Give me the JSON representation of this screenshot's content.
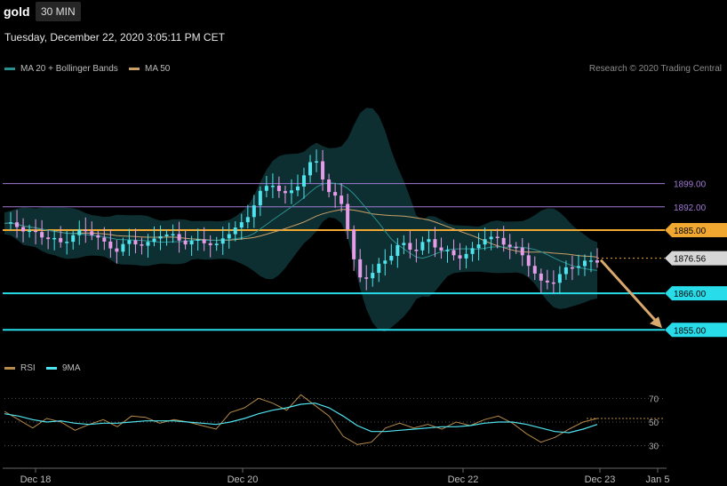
{
  "header": {
    "symbol": "gold",
    "timeframe": "30 MIN",
    "timestamp": "Tuesday, December 22, 2020 3:05:11 PM CET"
  },
  "legend": {
    "ma20": "MA 20 + Bollinger Bands",
    "ma50": "MA 50",
    "rsi": "RSI",
    "rsi_ma": "9MA"
  },
  "credit": "Research © 2020 Trading Central",
  "colors": {
    "background": "#000000",
    "up": "#4fe3ee",
    "down": "#e79ce9",
    "ma20": "#2a8f8f",
    "ma50": "#c9a06a",
    "band": "#0f3436",
    "resistance": "#f0a830",
    "support": "#28dcea",
    "pivot": "#a07ad4",
    "arrow": "#d8a86c",
    "rsi": "#b58a4a"
  },
  "chart_data": [
    {
      "type": "line",
      "subtype": "candlestick",
      "ylim": [
        1850,
        1920
      ],
      "xlabels": [
        "Dec 18",
        "Dec 20",
        "Dec 22",
        "Dec 23",
        "Jan 5"
      ],
      "series": [
        {
          "name": "MA 20 + Bollinger Bands",
          "x": [
            "Dec 18",
            "Dec 20",
            "Dec 21",
            "Dec 22",
            "Dec 23"
          ],
          "values": [
            1887,
            1882,
            1888,
            1883,
            1877
          ]
        },
        {
          "name": "MA 50",
          "x": [
            "Dec 18",
            "Dec 20",
            "Dec 21",
            "Dec 22",
            "Dec 23"
          ],
          "values": [
            1880,
            1882,
            1886,
            1884,
            1879
          ]
        }
      ],
      "close_path": [
        1887,
        1886,
        1884,
        1883,
        1881,
        1884,
        1885,
        1881,
        1879,
        1882,
        1880,
        1884,
        1883,
        1881,
        1882,
        1880,
        1885,
        1887,
        1896,
        1899,
        1895,
        1900,
        1907,
        1896,
        1893,
        1870,
        1872,
        1876,
        1881,
        1879,
        1882,
        1879,
        1877,
        1878,
        1883,
        1882,
        1880,
        1876,
        1869,
        1870,
        1874,
        1875,
        1876
      ],
      "levels": [
        {
          "label": "1899.00",
          "value": 1899,
          "kind": "pivot"
        },
        {
          "label": "1892.00",
          "value": 1892,
          "kind": "pivot"
        },
        {
          "label": "1885.00",
          "value": 1885,
          "kind": "resistance"
        },
        {
          "label": "1876.56",
          "value": 1876.56,
          "kind": "last"
        },
        {
          "label": "1866.00",
          "value": 1866,
          "kind": "support"
        },
        {
          "label": "1855.00",
          "value": 1855,
          "kind": "support"
        }
      ],
      "forecast": {
        "from": 1876.56,
        "to": 1855
      }
    },
    {
      "type": "line",
      "ylim": [
        20,
        80
      ],
      "yticks": [
        70,
        50,
        30
      ],
      "series": [
        {
          "name": "RSI",
          "values": [
            59,
            52,
            45,
            53,
            50,
            43,
            48,
            52,
            46,
            55,
            54,
            49,
            52,
            50,
            47,
            44,
            58,
            62,
            70,
            66,
            60,
            73,
            64,
            55,
            38,
            31,
            33,
            45,
            49,
            45,
            48,
            44,
            50,
            47,
            52,
            55,
            49,
            40,
            33,
            37,
            44,
            50,
            53
          ]
        },
        {
          "name": "9MA",
          "values": [
            57,
            55,
            52,
            50,
            51,
            49,
            48,
            49,
            49,
            50,
            51,
            51,
            51,
            50,
            49,
            48,
            50,
            53,
            57,
            60,
            62,
            65,
            66,
            62,
            55,
            47,
            42,
            42,
            43,
            44,
            45,
            46,
            46,
            47,
            49,
            50,
            50,
            48,
            45,
            42,
            41,
            44,
            48
          ]
        }
      ]
    }
  ]
}
